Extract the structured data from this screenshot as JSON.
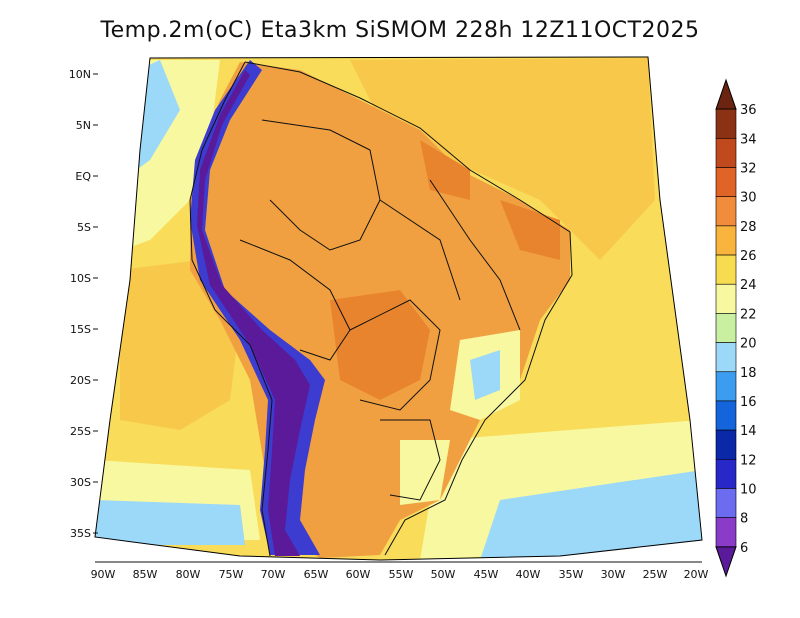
{
  "title": "Temp.2m(oC) Eta3km SiSMOM 228h 12Z11OCT2025",
  "lat_labels": [
    "10N",
    "5N",
    "EQ",
    "5S",
    "10S",
    "15S",
    "20S",
    "25S",
    "30S",
    "35S"
  ],
  "lon_labels": [
    "90W",
    "85W",
    "80W",
    "75W",
    "70W",
    "65W",
    "60W",
    "55W",
    "50W",
    "45W",
    "40W",
    "35W",
    "30W",
    "25W",
    "20W"
  ],
  "colorbar": {
    "levels": [
      "6",
      "8",
      "10",
      "12",
      "14",
      "16",
      "18",
      "20",
      "22",
      "24",
      "26",
      "28",
      "30",
      "32",
      "34",
      "36"
    ],
    "colors": [
      "#5a1a9a",
      "#8a3cc8",
      "#6c6cf0",
      "#2828c8",
      "#0a28a8",
      "#1464dc",
      "#3c9cf0",
      "#9cd8f8",
      "#c8f0a0",
      "#f8f8a0",
      "#f8dc50",
      "#f8b43c",
      "#f08c3c",
      "#e06428",
      "#c04a1e",
      "#8c3214",
      "#6a2410"
    ]
  },
  "region_colors": {
    "ocean_warm": "#f8c84a",
    "ocean_mid": "#f8dc5a",
    "ocean_cool": "#f8f8a0",
    "ocean_cold": "#9cd8f8",
    "land_hot": "#f0a040",
    "land_very_hot": "#e8842e",
    "andes_cold": "#5a1a9a",
    "andes_cool": "#3c3cd0"
  }
}
